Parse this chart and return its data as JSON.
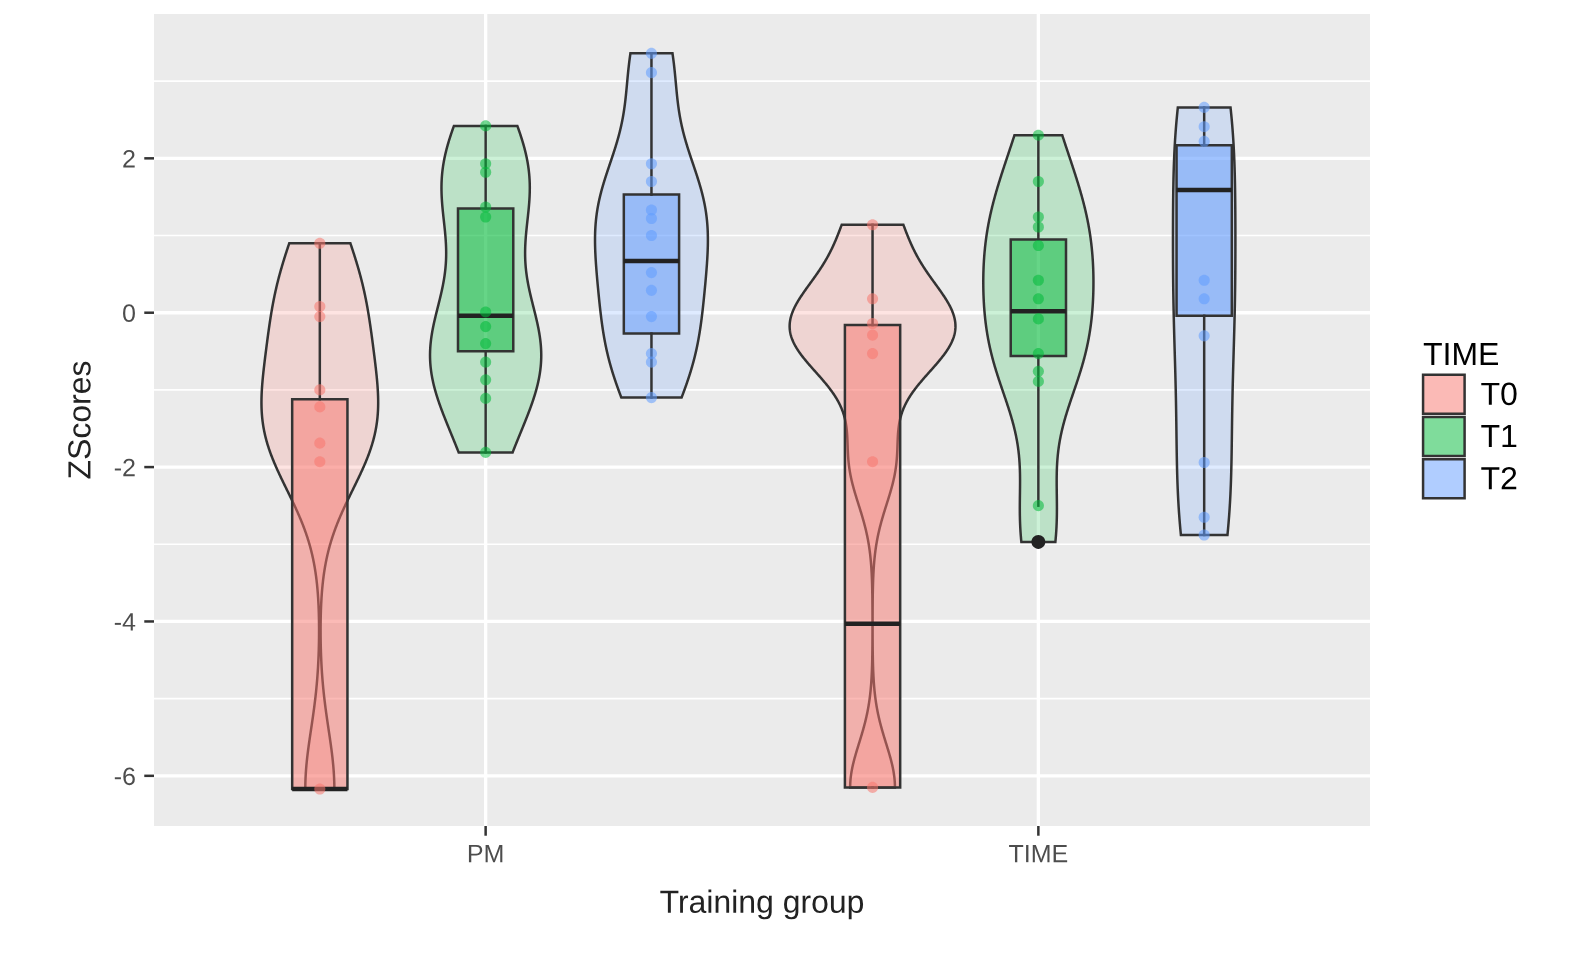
{
  "chart_data": {
    "type": "box",
    "categories": [
      "PM",
      "TIME"
    ],
    "xlabel": "Training group",
    "ylabel": "ZScores",
    "legend_title": "TIME",
    "legend": "right",
    "grid": true,
    "ylim": [
      -6.65,
      3.87
    ],
    "yticks": [
      -6,
      -4,
      -2,
      0,
      2
    ],
    "series": [
      {
        "name": "T0",
        "color": "#f8766d",
        "boxes": [
          {
            "low": -6.17,
            "q1": -6.17,
            "median": -6.17,
            "q3": -1.12,
            "high": 0.9
          },
          {
            "low": -6.15,
            "q1": -6.15,
            "median": -4.03,
            "q3": -0.16,
            "high": 1.14
          }
        ]
      },
      {
        "name": "T1",
        "color": "#00ba38",
        "boxes": [
          {
            "low": -1.81,
            "q1": -0.5,
            "median": -0.04,
            "q3": 1.35,
            "high": 2.42
          },
          {
            "low": -2.5,
            "q1": -0.56,
            "median": 0.02,
            "q3": 0.95,
            "high": 2.3,
            "outliers": [
              -2.97
            ]
          }
        ]
      },
      {
        "name": "T2",
        "color": "#619cff",
        "boxes": [
          {
            "low": -1.1,
            "q1": -0.27,
            "median": 0.67,
            "q3": 1.53,
            "high": 3.36
          },
          {
            "low": -2.88,
            "q1": -0.04,
            "median": 1.59,
            "q3": 2.17,
            "high": 2.66
          }
        ]
      },
      {
        "type": "scatter",
        "color": "#f8766d",
        "x": [
          "PM",
          "PM",
          "PM",
          "PM",
          "PM",
          "PM",
          "PM",
          "PM",
          "TIME",
          "TIME",
          "TIME",
          "TIME",
          "TIME",
          "TIME",
          "TIME"
        ],
        "values": [
          0.9,
          0.08,
          -0.05,
          -1.0,
          -1.22,
          -1.69,
          -1.93,
          -6.17,
          1.14,
          0.18,
          -0.14,
          -0.29,
          -0.53,
          -1.93,
          -6.15
        ]
      },
      {
        "type": "scatter",
        "color": "#00ba38",
        "x": [
          "PM",
          "PM",
          "PM",
          "PM",
          "PM",
          "PM",
          "PM",
          "PM",
          "PM",
          "PM",
          "PM",
          "PM",
          "TIME",
          "TIME",
          "TIME",
          "TIME",
          "TIME",
          "TIME",
          "TIME",
          "TIME",
          "TIME",
          "TIME",
          "TIME",
          "TIME"
        ],
        "values": [
          2.42,
          1.93,
          1.82,
          1.37,
          1.24,
          0.01,
          -0.18,
          -0.4,
          -0.64,
          -0.87,
          -1.11,
          -1.81,
          2.3,
          1.7,
          1.24,
          1.11,
          0.87,
          0.42,
          0.18,
          -0.08,
          -0.53,
          -0.76,
          -0.89,
          -2.5
        ]
      },
      {
        "type": "scatter",
        "color": "#619cff",
        "x": [
          "PM",
          "PM",
          "PM",
          "PM",
          "PM",
          "PM",
          "PM",
          "PM",
          "PM",
          "PM",
          "PM",
          "PM",
          "PM",
          "TIME",
          "TIME",
          "TIME",
          "TIME",
          "TIME",
          "TIME",
          "TIME",
          "TIME",
          "TIME"
        ],
        "values": [
          3.36,
          3.11,
          1.93,
          1.7,
          1.33,
          1.22,
          1.0,
          0.52,
          0.29,
          -0.05,
          -0.53,
          -0.64,
          -1.1,
          2.66,
          2.41,
          2.22,
          0.42,
          0.18,
          -0.3,
          -1.94,
          -2.65,
          -2.88
        ]
      }
    ]
  }
}
